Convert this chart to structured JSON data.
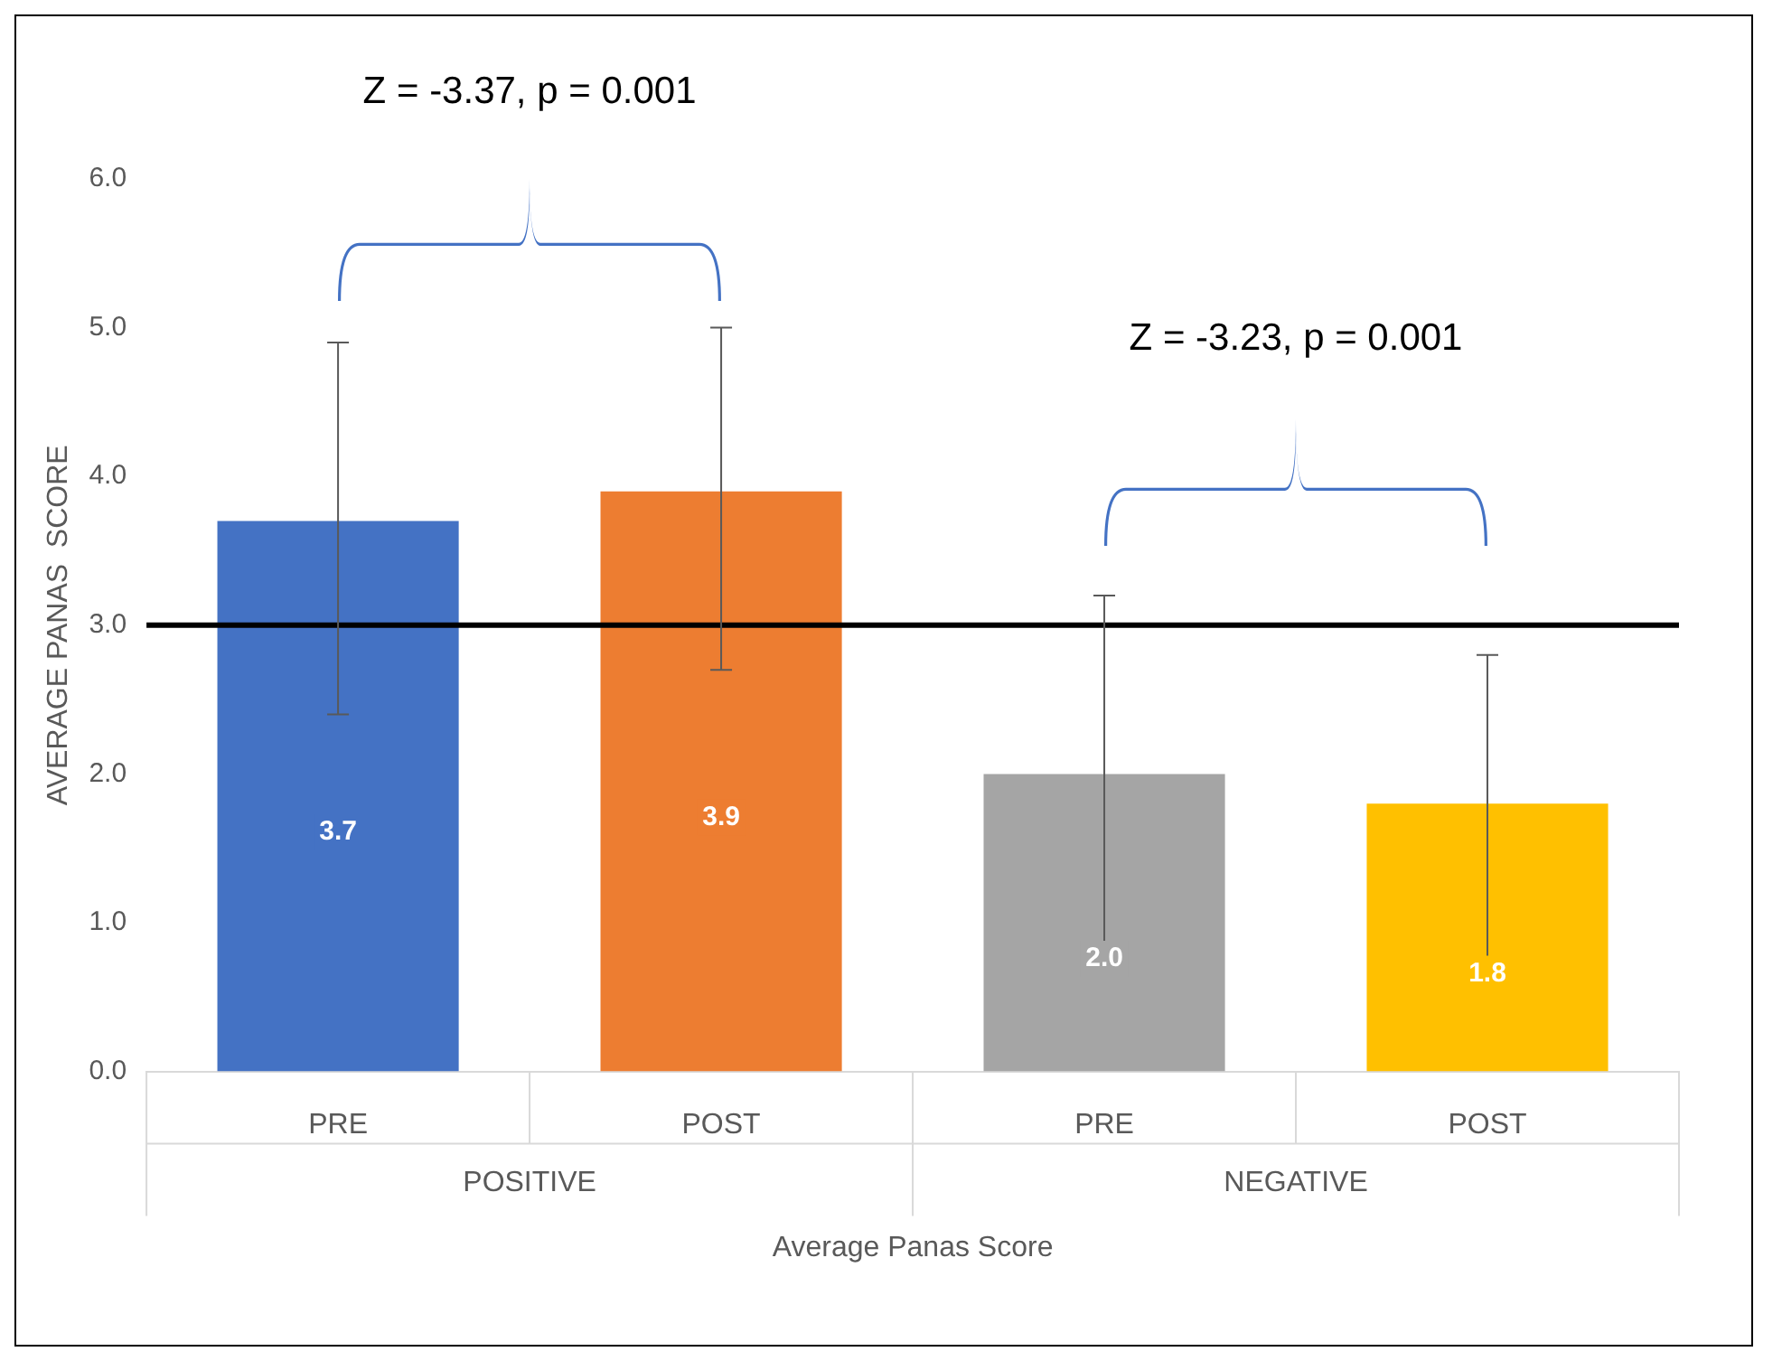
{
  "chart_data": {
    "type": "bar",
    "ylabel": "AVERAGE PANAS  SCORE",
    "xlabel": "Average Panas Score",
    "categories": [
      "PRE",
      "POST",
      "PRE",
      "POST"
    ],
    "values": [
      3.7,
      3.9,
      2.0,
      1.8
    ],
    "colors": [
      "#4472c4",
      "#ed7d31",
      "#a5a5a5",
      "#ffc000"
    ],
    "errors": [
      [
        2.4,
        4.9
      ],
      [
        2.7,
        5.0
      ],
      [
        0.8,
        3.2
      ],
      [
        0.7,
        2.8
      ]
    ],
    "value_labels": [
      "3.7",
      "3.9",
      "2.0",
      "1.8"
    ],
    "ylim": [
      0,
      6
    ],
    "yticks": [
      {
        "value": 0,
        "label": "0.0"
      },
      {
        "value": 1,
        "label": "1.0"
      },
      {
        "value": 2,
        "label": "2.0"
      },
      {
        "value": 3,
        "label": "3.0"
      },
      {
        "value": 4,
        "label": "4.0"
      },
      {
        "value": 5,
        "label": "5.0"
      },
      {
        "value": 6,
        "label": "6.0"
      }
    ],
    "ref_lines": [
      {
        "axis": "y",
        "value": 3,
        "color": "#000000"
      }
    ],
    "annotations": [
      "Z = -3.37, p = 0.001",
      "Z = -3.23, p = 0.001",
      "POSITIVE",
      "NEGATIVE"
    ],
    "grid": false,
    "legend": false
  }
}
